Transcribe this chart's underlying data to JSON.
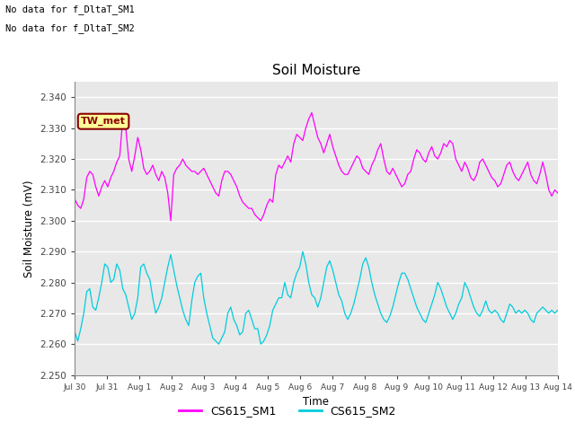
{
  "title": "Soil Moisture",
  "xlabel": "Time",
  "ylabel": "Soil Moisture (mV)",
  "ylim": [
    2.25,
    2.345
  ],
  "yticks": [
    2.25,
    2.26,
    2.27,
    2.28,
    2.29,
    2.3,
    2.31,
    2.32,
    2.33,
    2.34
  ],
  "xtick_labels": [
    "Jul 30",
    "Jul 31",
    "Aug 1",
    "Aug 2",
    "Aug 3",
    "Aug 4",
    "Aug 5",
    "Aug 6",
    "Aug 7",
    "Aug 8",
    "Aug 9",
    "Aug 10",
    "Aug 11",
    "Aug 12",
    "Aug 13",
    "Aug 14"
  ],
  "color_sm1": "#FF00FF",
  "color_sm2": "#00CCDD",
  "legend_label_sm1": "CS615_SM1",
  "legend_label_sm2": "CS615_SM2",
  "annotation_line1": "No data for f_DltaT_SM1",
  "annotation_line2": "No data for f_DltaT_SM2",
  "tw_met_label": "TW_met",
  "tw_met_color_bg": "#FFFF99",
  "tw_met_color_border": "#8B0000",
  "tw_met_color_text": "#8B0000",
  "plot_bg_color": "#E8E8E8",
  "sm1_data": [
    2.307,
    2.305,
    2.304,
    2.307,
    2.314,
    2.316,
    2.315,
    2.311,
    2.308,
    2.311,
    2.313,
    2.311,
    2.314,
    2.316,
    2.319,
    2.321,
    2.333,
    2.33,
    2.32,
    2.316,
    2.321,
    2.327,
    2.323,
    2.317,
    2.315,
    2.316,
    2.318,
    2.315,
    2.313,
    2.316,
    2.314,
    2.309,
    2.3,
    2.315,
    2.317,
    2.318,
    2.32,
    2.318,
    2.317,
    2.316,
    2.316,
    2.315,
    2.316,
    2.317,
    2.315,
    2.313,
    2.311,
    2.309,
    2.308,
    2.313,
    2.316,
    2.316,
    2.315,
    2.313,
    2.311,
    2.308,
    2.306,
    2.305,
    2.304,
    2.304,
    2.302,
    2.301,
    2.3,
    2.302,
    2.305,
    2.307,
    2.306,
    2.315,
    2.318,
    2.317,
    2.319,
    2.321,
    2.319,
    2.325,
    2.328,
    2.327,
    2.326,
    2.33,
    2.333,
    2.335,
    2.331,
    2.327,
    2.325,
    2.322,
    2.325,
    2.328,
    2.324,
    2.321,
    2.318,
    2.316,
    2.315,
    2.315,
    2.317,
    2.319,
    2.321,
    2.32,
    2.317,
    2.316,
    2.315,
    2.318,
    2.32,
    2.323,
    2.325,
    2.32,
    2.316,
    2.315,
    2.317,
    2.315,
    2.313,
    2.311,
    2.312,
    2.315,
    2.316,
    2.32,
    2.323,
    2.322,
    2.32,
    2.319,
    2.322,
    2.324,
    2.321,
    2.32,
    2.322,
    2.325,
    2.324,
    2.326,
    2.325,
    2.32,
    2.318,
    2.316,
    2.319,
    2.317,
    2.314,
    2.313,
    2.315,
    2.319,
    2.32,
    2.318,
    2.316,
    2.314,
    2.313,
    2.311,
    2.312,
    2.315,
    2.318,
    2.319,
    2.316,
    2.314,
    2.313,
    2.315,
    2.317,
    2.319,
    2.315,
    2.313,
    2.312,
    2.315,
    2.319,
    2.315,
    2.31,
    2.308,
    2.31,
    2.309
  ],
  "sm2_data": [
    2.264,
    2.261,
    2.265,
    2.27,
    2.277,
    2.278,
    2.272,
    2.271,
    2.275,
    2.28,
    2.286,
    2.285,
    2.28,
    2.281,
    2.286,
    2.284,
    2.278,
    2.276,
    2.272,
    2.268,
    2.27,
    2.275,
    2.285,
    2.286,
    2.283,
    2.281,
    2.275,
    2.27,
    2.272,
    2.275,
    2.28,
    2.285,
    2.289,
    2.284,
    2.279,
    2.275,
    2.271,
    2.268,
    2.266,
    2.274,
    2.28,
    2.282,
    2.283,
    2.275,
    2.27,
    2.266,
    2.262,
    2.261,
    2.26,
    2.262,
    2.264,
    2.27,
    2.272,
    2.268,
    2.266,
    2.263,
    2.264,
    2.27,
    2.271,
    2.268,
    2.265,
    2.265,
    2.26,
    2.261,
    2.263,
    2.266,
    2.271,
    2.273,
    2.275,
    2.275,
    2.28,
    2.276,
    2.275,
    2.28,
    2.283,
    2.285,
    2.29,
    2.286,
    2.28,
    2.276,
    2.275,
    2.272,
    2.275,
    2.28,
    2.285,
    2.287,
    2.284,
    2.28,
    2.276,
    2.274,
    2.27,
    2.268,
    2.27,
    2.273,
    2.277,
    2.281,
    2.286,
    2.288,
    2.285,
    2.28,
    2.276,
    2.273,
    2.27,
    2.268,
    2.267,
    2.269,
    2.272,
    2.276,
    2.28,
    2.283,
    2.283,
    2.281,
    2.278,
    2.275,
    2.272,
    2.27,
    2.268,
    2.267,
    2.27,
    2.273,
    2.276,
    2.28,
    2.278,
    2.275,
    2.272,
    2.27,
    2.268,
    2.27,
    2.273,
    2.275,
    2.28,
    2.278,
    2.275,
    2.272,
    2.27,
    2.269,
    2.271,
    2.274,
    2.271,
    2.27,
    2.271,
    2.27,
    2.268,
    2.267,
    2.27,
    2.273,
    2.272,
    2.27,
    2.271,
    2.27,
    2.271,
    2.27,
    2.268,
    2.267,
    2.27,
    2.271,
    2.272,
    2.271,
    2.27,
    2.271,
    2.27,
    2.271
  ]
}
